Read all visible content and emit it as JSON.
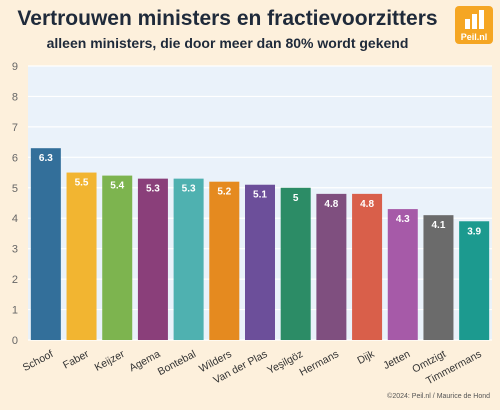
{
  "header": {
    "title": "Vertrouwen ministers en fractievoorzitters",
    "subtitle": "alleen ministers, die door meer dan 80% wordt gekend",
    "logo_text": "Peil.nl"
  },
  "footer": {
    "credit": "©2024: Peil.nl / Maurice de Hond"
  },
  "chart_data": {
    "type": "bar",
    "categories": [
      "Schoof",
      "Faber",
      "Keijzer",
      "Agema",
      "Bontebal",
      "Wilders",
      "Van der Plas",
      "Yeşilgöz",
      "Hermans",
      "Dijk",
      "Jetten",
      "Omtzigt",
      "Timmermans"
    ],
    "values": [
      6.3,
      5.5,
      5.4,
      5.3,
      5.3,
      5.2,
      5.1,
      5,
      4.8,
      4.8,
      4.3,
      4.1,
      3.9
    ],
    "data_labels": [
      "6.3",
      "5.5",
      "5.4",
      "5.3",
      "5.3",
      "5.2",
      "5.1",
      "5",
      "4.8",
      "4.8",
      "4.3",
      "4.1",
      "3.9"
    ],
    "colors": [
      "#336f9a",
      "#f2b531",
      "#7db44f",
      "#8a3f7a",
      "#4fb1b0",
      "#e58a1f",
      "#6c4f9a",
      "#2c8c66",
      "#7f4f7f",
      "#d95f4a",
      "#a65aa8",
      "#6b6b6b",
      "#1c9a8f"
    ],
    "ylim": [
      0,
      9
    ],
    "yticks": [
      "0",
      "1",
      "2",
      "3",
      "4",
      "5",
      "6",
      "7",
      "8",
      "9"
    ],
    "grid": true,
    "plot_background": "#eaf2fa"
  }
}
